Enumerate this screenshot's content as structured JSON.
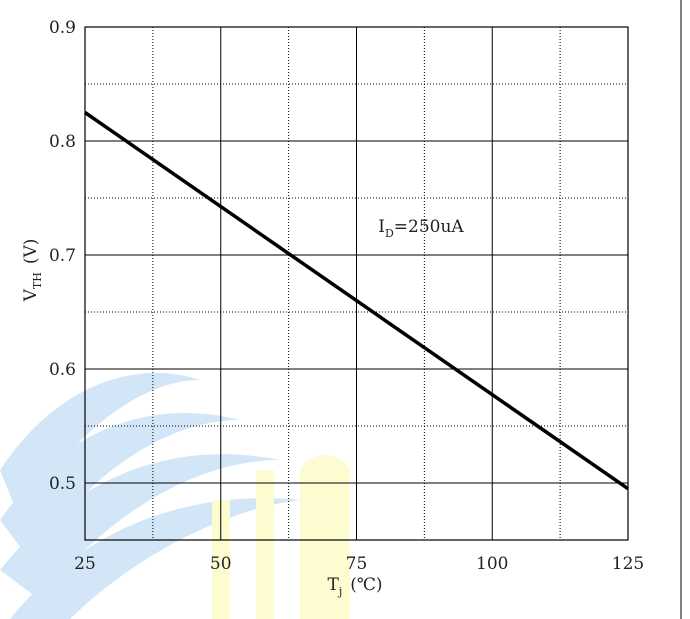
{
  "chart_data": {
    "type": "line",
    "title": "",
    "xlabel": {
      "main": "T",
      "sub": "j",
      "unit": "(℃)"
    },
    "ylabel": {
      "main": "V",
      "sub": "TH",
      "unit": "(V)"
    },
    "xlim": [
      25,
      125
    ],
    "ylim": [
      0.45,
      0.9
    ],
    "xticks": [
      25,
      50,
      75,
      100,
      125
    ],
    "yticks": [
      0.5,
      0.6,
      0.7,
      0.8,
      0.9
    ],
    "xtick_labels": [
      "25",
      "50",
      "75",
      "100",
      "125"
    ],
    "ytick_labels": [
      "0.5",
      "0.6",
      "0.7",
      "0.8",
      "0.9"
    ],
    "grid": true,
    "series": [
      {
        "x": [
          25,
          125
        ],
        "y": [
          0.825,
          0.495
        ],
        "color": "#000000"
      }
    ],
    "annotations": [
      {
        "main": "I",
        "sub": "D",
        "rest": "=250uA",
        "x": 79,
        "y": 0.72
      }
    ]
  }
}
